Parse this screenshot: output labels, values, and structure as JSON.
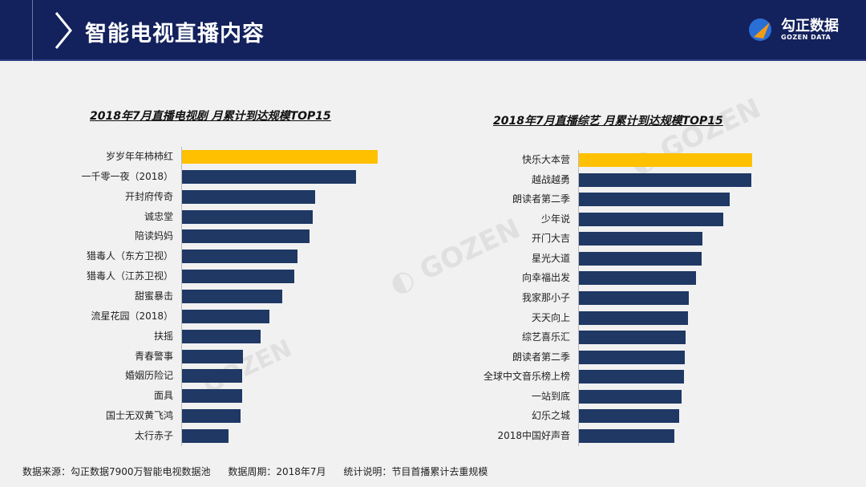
{
  "header": {
    "title": "智能电视直播内容",
    "logo_cn": "勾正数据",
    "logo_en": "GOZEN DATA"
  },
  "colors": {
    "header_bg": "#13215c",
    "highlight": "#ffc000",
    "bar": "#1f3864"
  },
  "chart_data": [
    {
      "type": "bar",
      "orientation": "horizontal",
      "title": "2018年7月直播电视剧 月累计到达规模TOP15",
      "categories": [
        "岁岁年年柿柿红",
        "一千零一夜（2018）",
        "开封府传奇",
        "诚忠堂",
        "陪读妈妈",
        "猎毒人（东方卫视）",
        "猎毒人（江苏卫视）",
        "甜蜜暴击",
        "流星花园（2018）",
        "扶摇",
        "青春警事",
        "婚姻历险记",
        "面具",
        "国士无双黄飞鸿",
        "太行赤子"
      ],
      "values": [
        100,
        88.9,
        68,
        66.8,
        65.2,
        59,
        57.4,
        51.2,
        44.7,
        40.2,
        31.1,
        30.7,
        30.7,
        29.9,
        23.8
      ],
      "value_unit": "relative (% of top bar, no axis shown)",
      "highlight_index": 0
    },
    {
      "type": "bar",
      "orientation": "horizontal",
      "title": "2018年7月直播综艺 月累计到达规模TOP15",
      "categories": [
        "快乐大本营",
        "越战越勇",
        "朗读者第二季",
        "少年说",
        "开门大吉",
        "星光大道",
        "向幸福出发",
        "我家那小子",
        "天天向上",
        "综艺喜乐汇",
        "朗读者第二季",
        "全球中文音乐榜上榜",
        "一站到底",
        "幻乐之城",
        "2018中国好声音"
      ],
      "values": [
        100,
        99.5,
        87,
        83.3,
        71.3,
        70.8,
        67.6,
        63.4,
        63,
        61.6,
        61.1,
        60.6,
        59.3,
        57.9,
        55.1
      ],
      "value_unit": "relative (% of top bar, no axis shown)",
      "highlight_index": 0
    }
  ],
  "footer": {
    "source": "数据来源：勾正数据7900万智能电视数据池",
    "period": "数据周期：2018年7月",
    "note": "统计说明：节目首播累计去重规模"
  }
}
